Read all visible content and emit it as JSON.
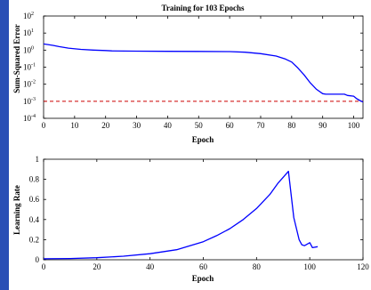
{
  "frame": {
    "accent_color": "#2a4fb5"
  },
  "chart_data": [
    {
      "type": "line",
      "title": "Training for 103 Epochs",
      "xlabel": "Epoch",
      "ylabel": "Sum-Squared Error",
      "xlim": [
        0,
        103
      ],
      "ylim": [
        0.0001,
        100
      ],
      "yscale": "log",
      "xticks": [
        0,
        10,
        20,
        30,
        40,
        50,
        60,
        70,
        80,
        90,
        100
      ],
      "yticks": [
        {
          "value": 0.0001,
          "base": "10",
          "exp": "-4"
        },
        {
          "value": 0.001,
          "base": "10",
          "exp": "-3"
        },
        {
          "value": 0.01,
          "base": "10",
          "exp": "-2"
        },
        {
          "value": 0.1,
          "base": "10",
          "exp": "-1"
        },
        {
          "value": 1,
          "base": "10",
          "exp": "0"
        },
        {
          "value": 10,
          "base": "10",
          "exp": "1"
        },
        {
          "value": 100,
          "base": "10",
          "exp": "2"
        }
      ],
      "series": [
        {
          "color": "#0000ff",
          "x": [
            0,
            3,
            5,
            8,
            12,
            16,
            20,
            22,
            30,
            40,
            50,
            60,
            65,
            70,
            75,
            78,
            80,
            82,
            84,
            86,
            88,
            90,
            91,
            92,
            96,
            97,
            98,
            100,
            101,
            102,
            103
          ],
          "y": [
            2.3,
            1.9,
            1.6,
            1.3,
            1.1,
            1.0,
            0.95,
            0.9,
            0.87,
            0.85,
            0.84,
            0.82,
            0.75,
            0.62,
            0.45,
            0.3,
            0.2,
            0.09,
            0.035,
            0.012,
            0.005,
            0.0028,
            0.0026,
            0.0026,
            0.0026,
            0.0026,
            0.0022,
            0.002,
            0.0014,
            0.0011,
            0.0009
          ]
        }
      ],
      "reference_lines": [
        {
          "orientation": "horizontal",
          "y": 0.001,
          "color": "#cc0000",
          "style": "dashed"
        }
      ],
      "grid": false
    },
    {
      "type": "line",
      "title": "",
      "xlabel": "Epoch",
      "ylabel": "Learning Rate",
      "xlim": [
        0,
        120
      ],
      "ylim": [
        0,
        1
      ],
      "xticks": [
        0,
        20,
        40,
        60,
        80,
        100,
        120
      ],
      "yticks": [
        0,
        0.2,
        0.4,
        0.6,
        0.8,
        1
      ],
      "ytick_labels": [
        "0",
        "0.2",
        "0.4",
        "0.6",
        "0.8",
        "1"
      ],
      "series": [
        {
          "color": "#0000ff",
          "x": [
            0,
            10,
            20,
            30,
            40,
            50,
            55,
            60,
            65,
            70,
            75,
            80,
            85,
            88,
            90,
            92,
            94,
            96,
            97,
            98,
            100,
            101,
            103
          ],
          "y": [
            0.01,
            0.012,
            0.02,
            0.035,
            0.06,
            0.1,
            0.14,
            0.18,
            0.24,
            0.31,
            0.4,
            0.51,
            0.65,
            0.76,
            0.82,
            0.88,
            0.42,
            0.2,
            0.15,
            0.14,
            0.17,
            0.12,
            0.13
          ]
        }
      ],
      "grid": false
    }
  ]
}
